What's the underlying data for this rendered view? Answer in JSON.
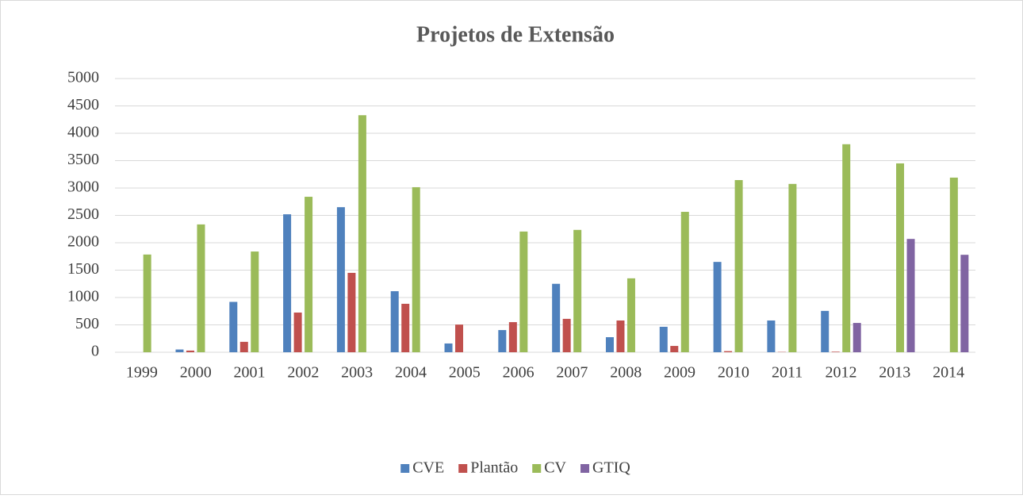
{
  "chart_data": {
    "type": "bar",
    "title": "Projetos de Extensão",
    "categories": [
      "1999",
      "2000",
      "2001",
      "2002",
      "2003",
      "2004",
      "2005",
      "2006",
      "2007",
      "2008",
      "2009",
      "2010",
      "2011",
      "2012",
      "2013",
      "2014"
    ],
    "series": [
      {
        "name": "CVE",
        "color": "#4f81bd",
        "values": [
          0,
          50,
          920,
          2520,
          2650,
          1115,
          160,
          405,
          1250,
          275,
          465,
          1650,
          580,
          755,
          0,
          0
        ]
      },
      {
        "name": "Plantão",
        "color": "#c0504d",
        "values": [
          0,
          30,
          190,
          725,
          1450,
          885,
          505,
          550,
          610,
          580,
          115,
          20,
          5,
          10,
          0,
          0
        ]
      },
      {
        "name": "CV",
        "color": "#9bbb59",
        "values": [
          1785,
          2335,
          1840,
          2840,
          4330,
          3015,
          0,
          2205,
          2235,
          1350,
          2565,
          3145,
          3075,
          3800,
          3450,
          3190
        ]
      },
      {
        "name": "GTIQ",
        "color": "#8064a2",
        "values": [
          0,
          0,
          0,
          0,
          0,
          0,
          0,
          0,
          0,
          0,
          0,
          0,
          0,
          535,
          2070,
          1780
        ]
      }
    ],
    "ylim": [
      0,
      5000
    ],
    "yticks": [
      0,
      500,
      1000,
      1500,
      2000,
      2500,
      3000,
      3500,
      4000,
      4500,
      5000
    ],
    "grid": true,
    "legend": "bottom"
  }
}
